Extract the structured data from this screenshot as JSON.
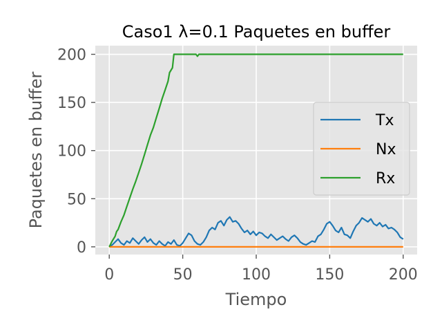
{
  "chart_data": {
    "type": "line",
    "title": "Caso1 λ=0.1 Paquetes en buffer",
    "xlabel": "Tiempo",
    "ylabel": "Paquetes en buffer",
    "xlim": [
      -9.5,
      209.5
    ],
    "ylim": [
      -8,
      209
    ],
    "xticks": [
      0,
      50,
      100,
      150,
      200
    ],
    "yticks": [
      0,
      50,
      100,
      150,
      200
    ],
    "grid": true,
    "legend_position": "center-right",
    "series": [
      {
        "name": "Tx",
        "color": "#1f77b4",
        "x": [
          0,
          2,
          4,
          6,
          8,
          10,
          12,
          14,
          16,
          18,
          20,
          22,
          24,
          26,
          28,
          30,
          32,
          34,
          36,
          38,
          40,
          42,
          44,
          46,
          48,
          50,
          52,
          54,
          56,
          58,
          60,
          62,
          64,
          66,
          68,
          70,
          72,
          74,
          76,
          78,
          80,
          82,
          84,
          86,
          88,
          90,
          92,
          94,
          96,
          98,
          100,
          102,
          104,
          106,
          108,
          110,
          112,
          114,
          116,
          118,
          120,
          122,
          124,
          126,
          128,
          130,
          132,
          134,
          136,
          138,
          140,
          142,
          144,
          146,
          148,
          150,
          152,
          154,
          156,
          158,
          160,
          162,
          164,
          166,
          168,
          170,
          172,
          174,
          176,
          178,
          180,
          182,
          184,
          186,
          188,
          190,
          192,
          194,
          196,
          198,
          200
        ],
        "values": [
          0,
          2,
          5,
          8,
          4,
          2,
          6,
          4,
          9,
          6,
          3,
          7,
          10,
          5,
          8,
          4,
          2,
          6,
          3,
          1,
          5,
          3,
          7,
          2,
          1,
          4,
          9,
          14,
          12,
          6,
          3,
          2,
          5,
          10,
          17,
          20,
          18,
          25,
          27,
          22,
          28,
          31,
          26,
          27,
          24,
          19,
          15,
          17,
          13,
          16,
          12,
          15,
          14,
          11,
          9,
          13,
          10,
          7,
          9,
          11,
          8,
          6,
          10,
          12,
          9,
          5,
          3,
          2,
          4,
          6,
          5,
          11,
          13,
          18,
          24,
          26,
          22,
          17,
          15,
          20,
          13,
          12,
          9,
          16,
          22,
          25,
          30,
          28,
          26,
          29,
          24,
          22,
          25,
          21,
          23,
          19,
          20,
          18,
          15,
          10,
          8
        ]
      },
      {
        "name": "Nx",
        "color": "#ff7f0e",
        "x": [
          0,
          200
        ],
        "values": [
          0,
          0
        ]
      },
      {
        "name": "Rx",
        "color": "#2ca02c",
        "x": [
          0,
          2,
          4,
          5,
          6,
          8,
          10,
          12,
          14,
          16,
          18,
          20,
          22,
          24,
          26,
          28,
          30,
          32,
          34,
          36,
          38,
          40,
          41,
          43,
          44,
          46,
          50,
          55,
          59,
          60,
          61,
          65,
          80,
          100,
          120,
          140,
          160,
          180,
          200
        ],
        "values": [
          0,
          6,
          11,
          16,
          18,
          26,
          33,
          42,
          51,
          60,
          68,
          77,
          86,
          96,
          106,
          116,
          124,
          134,
          144,
          154,
          163,
          172,
          181,
          186,
          200,
          200,
          200,
          200,
          200,
          198,
          200,
          200,
          200,
          200,
          200,
          200,
          200,
          200,
          200
        ]
      }
    ]
  }
}
